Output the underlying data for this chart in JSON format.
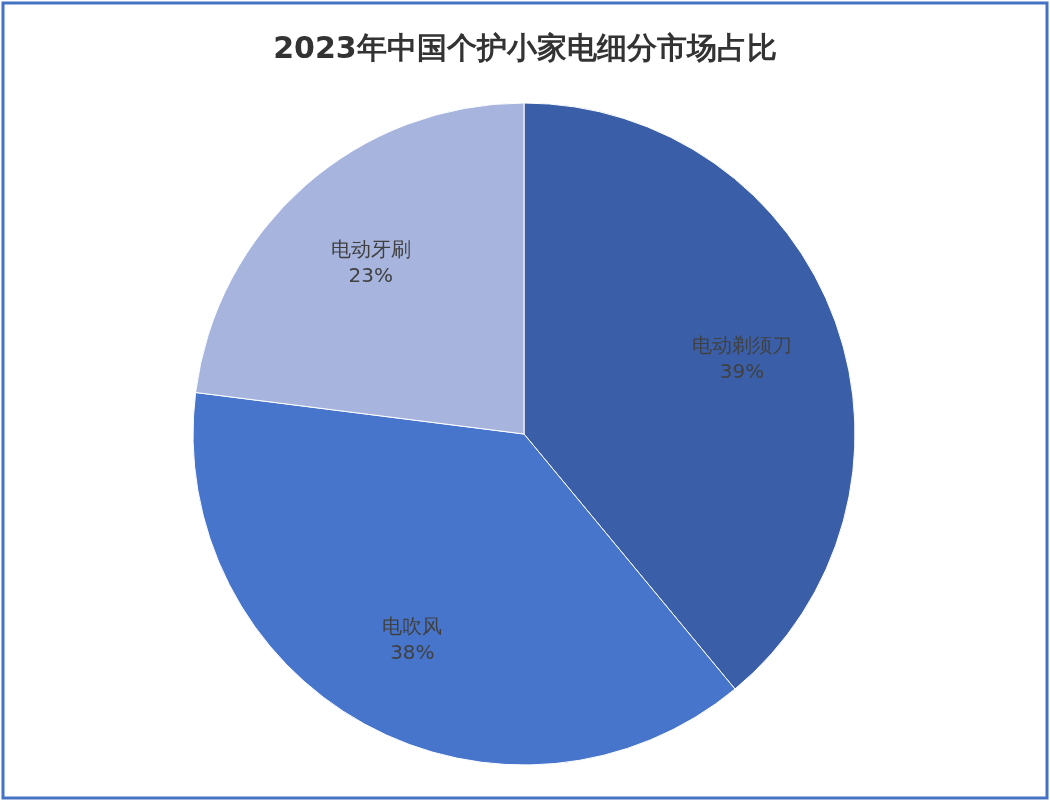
{
  "chart_data": {
    "type": "pie",
    "title": "2023年中国个护小家电细分市场占比",
    "categories": [
      "电动剃须刀",
      "电吹风",
      "电动牙刷"
    ],
    "values": [
      39,
      38,
      23
    ],
    "colors": [
      "#3a5fa8",
      "#4775cc",
      "#a7b5de"
    ],
    "value_labels": [
      "39%",
      "38%",
      "23%"
    ],
    "legend": false
  }
}
